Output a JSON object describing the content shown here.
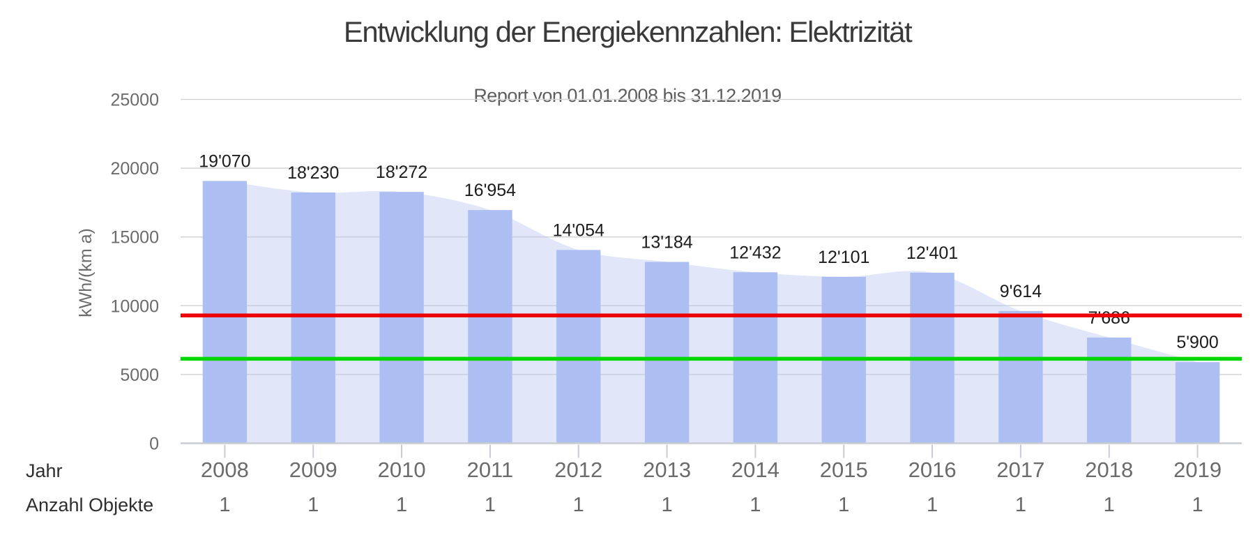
{
  "title": "Entwicklung der Energiekennzahlen: Elektrizität",
  "subtitle": "Report von 01.01.2008 bis 31.12.2019",
  "chart_data": {
    "type": "bar",
    "categories": [
      "2008",
      "2009",
      "2010",
      "2011",
      "2012",
      "2013",
      "2014",
      "2015",
      "2016",
      "2017",
      "2018",
      "2019"
    ],
    "values": [
      19070,
      18230,
      18272,
      16954,
      14054,
      13184,
      12432,
      12101,
      12401,
      9614,
      7686,
      5900
    ],
    "value_labels": [
      "19'070",
      "18'230",
      "18'272",
      "16'954",
      "14'054",
      "13'184",
      "12'432",
      "12'101",
      "12'401",
      "9'614",
      "7'686",
      "5'900"
    ],
    "area_overlay_values": [
      19070,
      18230,
      18272,
      16954,
      14054,
      13184,
      12432,
      12101,
      12401,
      9614,
      7686,
      5900
    ],
    "title": "Entwicklung der Energiekennzahlen: Elektrizität",
    "subtitle": "Report von 01.01.2008 bis 31.12.2019",
    "xlabel": "",
    "ylabel": "kWh/(km a)",
    "ylim": [
      0,
      25000
    ],
    "yticks": [
      0,
      5000,
      10000,
      15000,
      20000,
      25000
    ],
    "grid": true,
    "legend": "none",
    "reference_lines": [
      {
        "name": "limit-line-red",
        "value": 9290,
        "color": "#ec0000"
      },
      {
        "name": "target-line-green",
        "value": 6140,
        "color": "#00d600"
      }
    ],
    "rows": {
      "jahr_label": "Jahr",
      "anzahl_label": "Anzahl Objekte",
      "anzahl_values": [
        "1",
        "1",
        "1",
        "1",
        "1",
        "1",
        "1",
        "1",
        "1",
        "1",
        "1",
        "1"
      ]
    }
  },
  "colors": {
    "bar": "#adbef3",
    "area": "#b7c6ef",
    "grid": "#d4d4d4",
    "axis": "#c8ccd3",
    "tick_text": "#6b6b6b",
    "value_text": "#1c1c1c",
    "limit_red": "#ec0000",
    "target_green": "#00d600"
  }
}
